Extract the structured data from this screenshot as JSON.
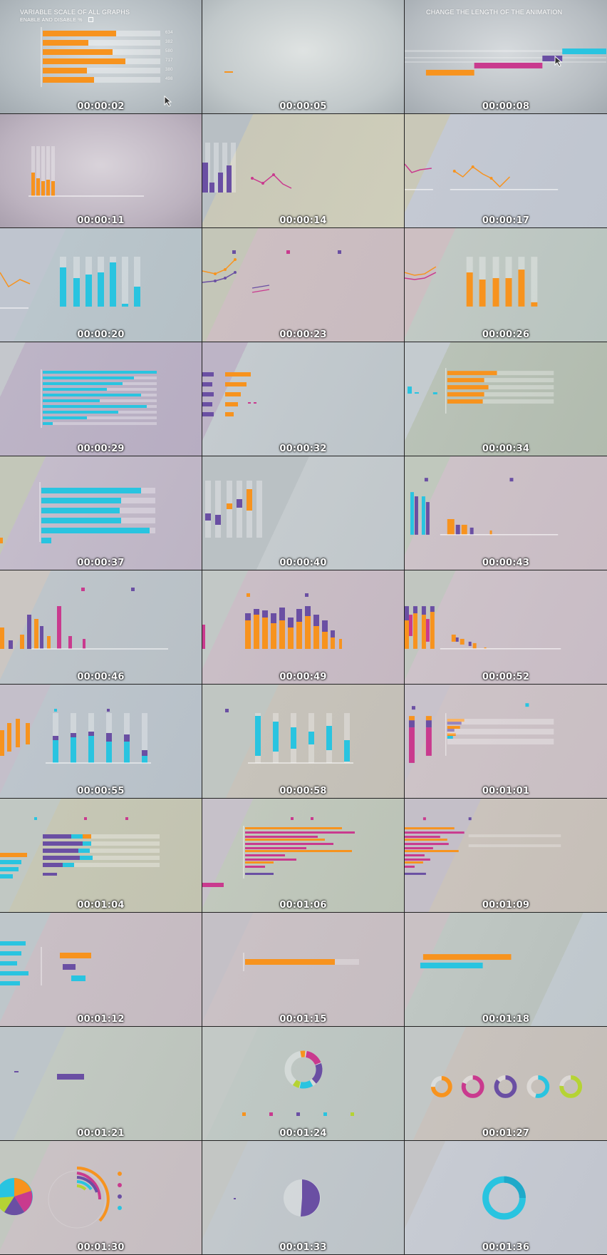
{
  "captions": {
    "variable_scale": "VARIABLE SCALE OF ALL GRAPHS",
    "enable_disable": "ENABLE AND DISABLE %",
    "change_length": "CHANGE THE LENGTH OF THE ANIMATION"
  },
  "frame1_values": [
    "634",
    "382",
    "580",
    "717",
    "380",
    "498"
  ],
  "timestamps": [
    "00:00:02",
    "00:00:05",
    "00:00:08",
    "00:00:11",
    "00:00:14",
    "00:00:17",
    "00:00:20",
    "00:00:23",
    "00:00:26",
    "00:00:29",
    "00:00:32",
    "00:00:34",
    "00:00:37",
    "00:00:40",
    "00:00:43",
    "00:00:46",
    "00:00:49",
    "00:00:52",
    "00:00:55",
    "00:00:58",
    "00:01:01",
    "00:01:04",
    "00:01:06",
    "00:01:09",
    "00:01:12",
    "00:01:15",
    "00:01:18",
    "00:01:21",
    "00:01:24",
    "00:01:27",
    "00:01:30",
    "00:01:33",
    "00:01:36"
  ],
  "colors": {
    "orange": "#f7931e",
    "orange_dark": "#f26b1d",
    "cyan": "#29c4e0",
    "cyan_dark": "#1fa9c9",
    "purple": "#6a4fa3",
    "magenta": "#c93a8e",
    "lime": "#b5d334"
  }
}
